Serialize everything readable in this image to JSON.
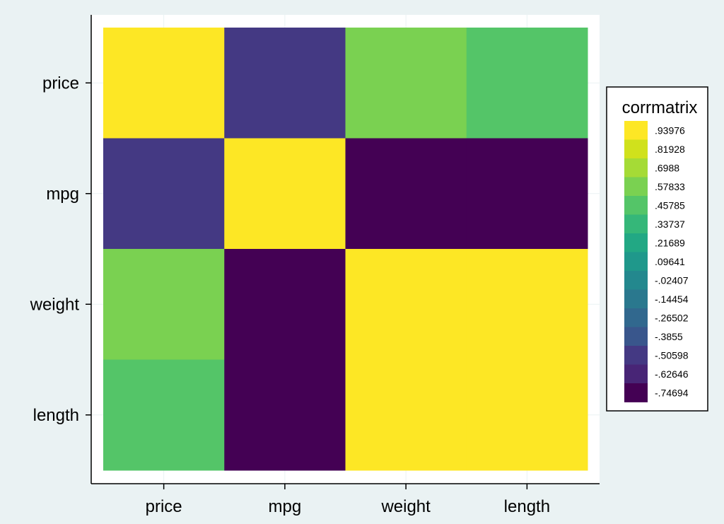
{
  "chart_data": {
    "type": "heatmap",
    "title": "",
    "xlabel": "",
    "ylabel": "",
    "x_categories": [
      "price",
      "mpg",
      "weight",
      "length"
    ],
    "y_categories": [
      "price",
      "mpg",
      "weight",
      "length"
    ],
    "matrix": [
      [
        1.0,
        -0.47,
        0.54,
        0.43
      ],
      [
        -0.47,
        1.0,
        -0.81,
        -0.8
      ],
      [
        0.54,
        -0.81,
        1.0,
        0.95
      ],
      [
        0.43,
        -0.8,
        0.95,
        1.0
      ]
    ],
    "legend": {
      "title": "corrmatrix",
      "placement": "right",
      "labels": [
        ".93976",
        ".81928",
        ".6988",
        ".57833",
        ".45785",
        ".33737",
        ".21689",
        ".09641",
        "-.02407",
        "-.14454",
        "-.26502",
        "-.3855",
        "-.50598",
        "-.62646",
        "-.74694"
      ],
      "colors": [
        "#fde725",
        "#d0e11c",
        "#a5db36",
        "#7ad151",
        "#54c568",
        "#35b779",
        "#22a884",
        "#1f988b",
        "#23888e",
        "#2a788e",
        "#31688e",
        "#39568c",
        "#443983",
        "#482576",
        "#440154"
      ]
    },
    "colors": {
      "plot_background": "#ffffff",
      "page_background": "#eaf2f3",
      "grid": "#eaf2f3",
      "axis": "#000000"
    }
  }
}
